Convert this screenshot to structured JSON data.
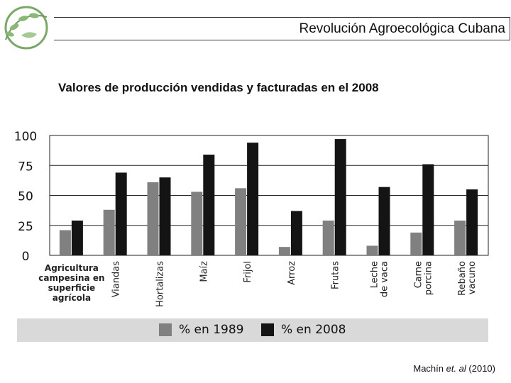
{
  "header": {
    "title": "Revolución Agroecológica Cubana"
  },
  "citation": {
    "author": "Machín ",
    "etal": "et. al",
    "year": " (2010)"
  },
  "colors": {
    "series_1989": "#808080",
    "series_2008": "#141414",
    "legend_bg": "#d9d9d9"
  },
  "chart_data": {
    "type": "bar",
    "title": "Valores de producción vendidas y facturadas en el 2008",
    "xlabel": "",
    "ylabel": "",
    "ylim": [
      0,
      100
    ],
    "yticks": [
      0,
      25,
      50,
      75,
      100
    ],
    "grid": true,
    "legend_position": "bottom",
    "categories": [
      [
        "Agricultura",
        "campesina en",
        "superficie",
        "agrícola"
      ],
      [
        "Viandas"
      ],
      [
        "Hortalizas"
      ],
      [
        "Maíz"
      ],
      [
        "Frijol"
      ],
      [
        "Arroz"
      ],
      [
        "Frutas"
      ],
      [
        "Leche",
        "de vaca"
      ],
      [
        "Carne",
        "porcina"
      ],
      [
        "Rebaño",
        "vacuno"
      ]
    ],
    "series": [
      {
        "name": "% en 1989",
        "values": [
          21,
          38,
          61,
          53,
          56,
          7,
          29,
          8,
          19,
          29
        ]
      },
      {
        "name": "% en 2008",
        "values": [
          29,
          69,
          65,
          84,
          94,
          37,
          97,
          57,
          76,
          55
        ]
      }
    ]
  }
}
